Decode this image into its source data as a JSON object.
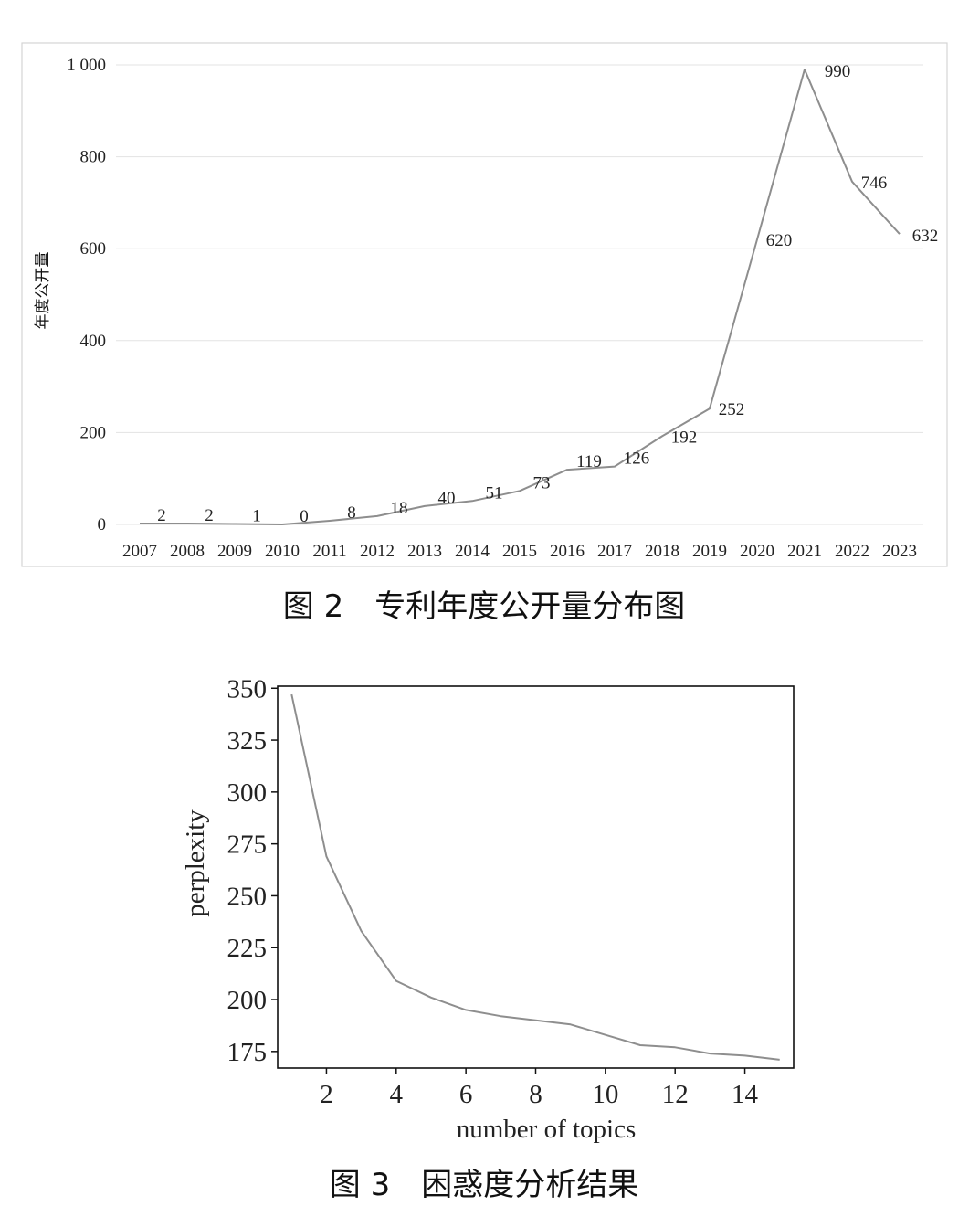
{
  "chart_data": [
    {
      "type": "line",
      "caption": "图 2　专利年度公开量分布图",
      "ylabel": "年度公开量",
      "ylim": [
        0,
        1000
      ],
      "y_ticks": [
        0,
        200,
        400,
        600,
        800,
        1000
      ],
      "y_tick_labels": [
        "0",
        "200",
        "400",
        "600",
        "800",
        "1 000"
      ],
      "grid": true,
      "categories": [
        "2007",
        "2008",
        "2009",
        "2010",
        "2011",
        "2012",
        "2013",
        "2014",
        "2015",
        "2016",
        "2017",
        "2018",
        "2019",
        "2020",
        "2021",
        "2022",
        "2023"
      ],
      "values": [
        2,
        2,
        1,
        0,
        8,
        18,
        40,
        51,
        73,
        119,
        126,
        192,
        252,
        620,
        990,
        746,
        632
      ],
      "line_color": "#8e8e8e"
    },
    {
      "type": "line",
      "caption": "图 3　困惑度分析结果",
      "xlabel": "number of topics",
      "ylabel": "perplexity",
      "xlim": [
        0.6,
        15.4
      ],
      "ylim": [
        167,
        351
      ],
      "x_ticks": [
        2,
        4,
        6,
        8,
        10,
        12,
        14
      ],
      "y_ticks": [
        175,
        200,
        225,
        250,
        275,
        300,
        325,
        350
      ],
      "grid": false,
      "x": [
        1,
        2,
        3,
        4,
        5,
        6,
        7,
        8,
        9,
        10,
        11,
        12,
        13,
        14,
        15
      ],
      "y": [
        347,
        269,
        233,
        209,
        201,
        195,
        192,
        190,
        188,
        183,
        178,
        177,
        174,
        173,
        171
      ],
      "line_color": "#8e8e8e"
    }
  ]
}
